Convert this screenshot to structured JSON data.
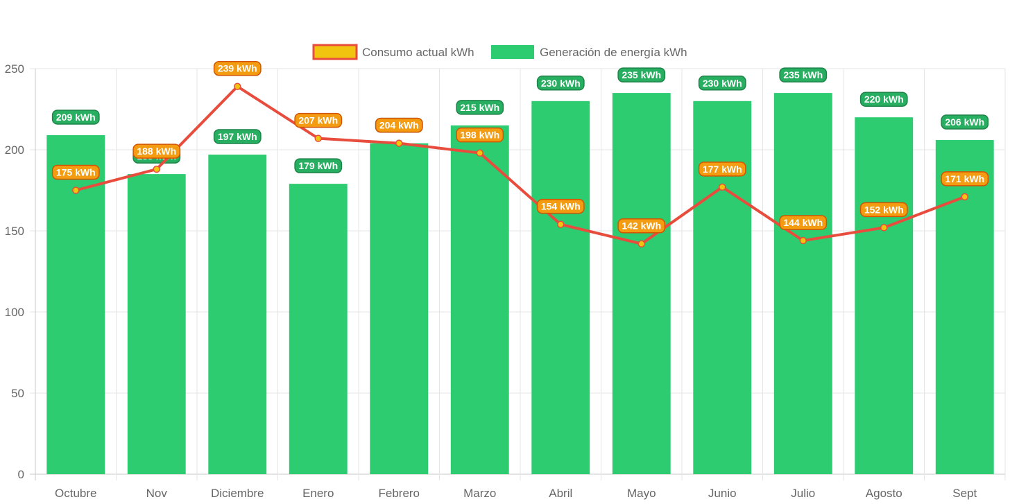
{
  "chart_data": {
    "type": "bar",
    "title": "",
    "xlabel": "",
    "ylabel": "",
    "ylim": [
      0,
      250
    ],
    "yticks": [
      0,
      50,
      100,
      150,
      200,
      250
    ],
    "grid": true,
    "legend_position": "top",
    "categories": [
      "Octubre",
      "Nov",
      "Diciembre",
      "Enero",
      "Febrero",
      "Marzo",
      "Abril",
      "Mayo",
      "Junio",
      "Julio",
      "Agosto",
      "Sept"
    ],
    "series": [
      {
        "name": "Consumo actual kWh",
        "type": "line",
        "color": "#e74c3c",
        "marker_color": "#f1c40f",
        "label_suffix": " kWh",
        "values": [
          175,
          188,
          239,
          207,
          204,
          198,
          154,
          142,
          177,
          144,
          152,
          171
        ]
      },
      {
        "name": "Generación de energía kWh",
        "type": "bar",
        "color": "#2ecc71",
        "label_suffix": " kWh",
        "values": [
          209,
          185,
          197,
          179,
          204,
          215,
          230,
          235,
          230,
          235,
          220,
          206
        ]
      }
    ]
  }
}
